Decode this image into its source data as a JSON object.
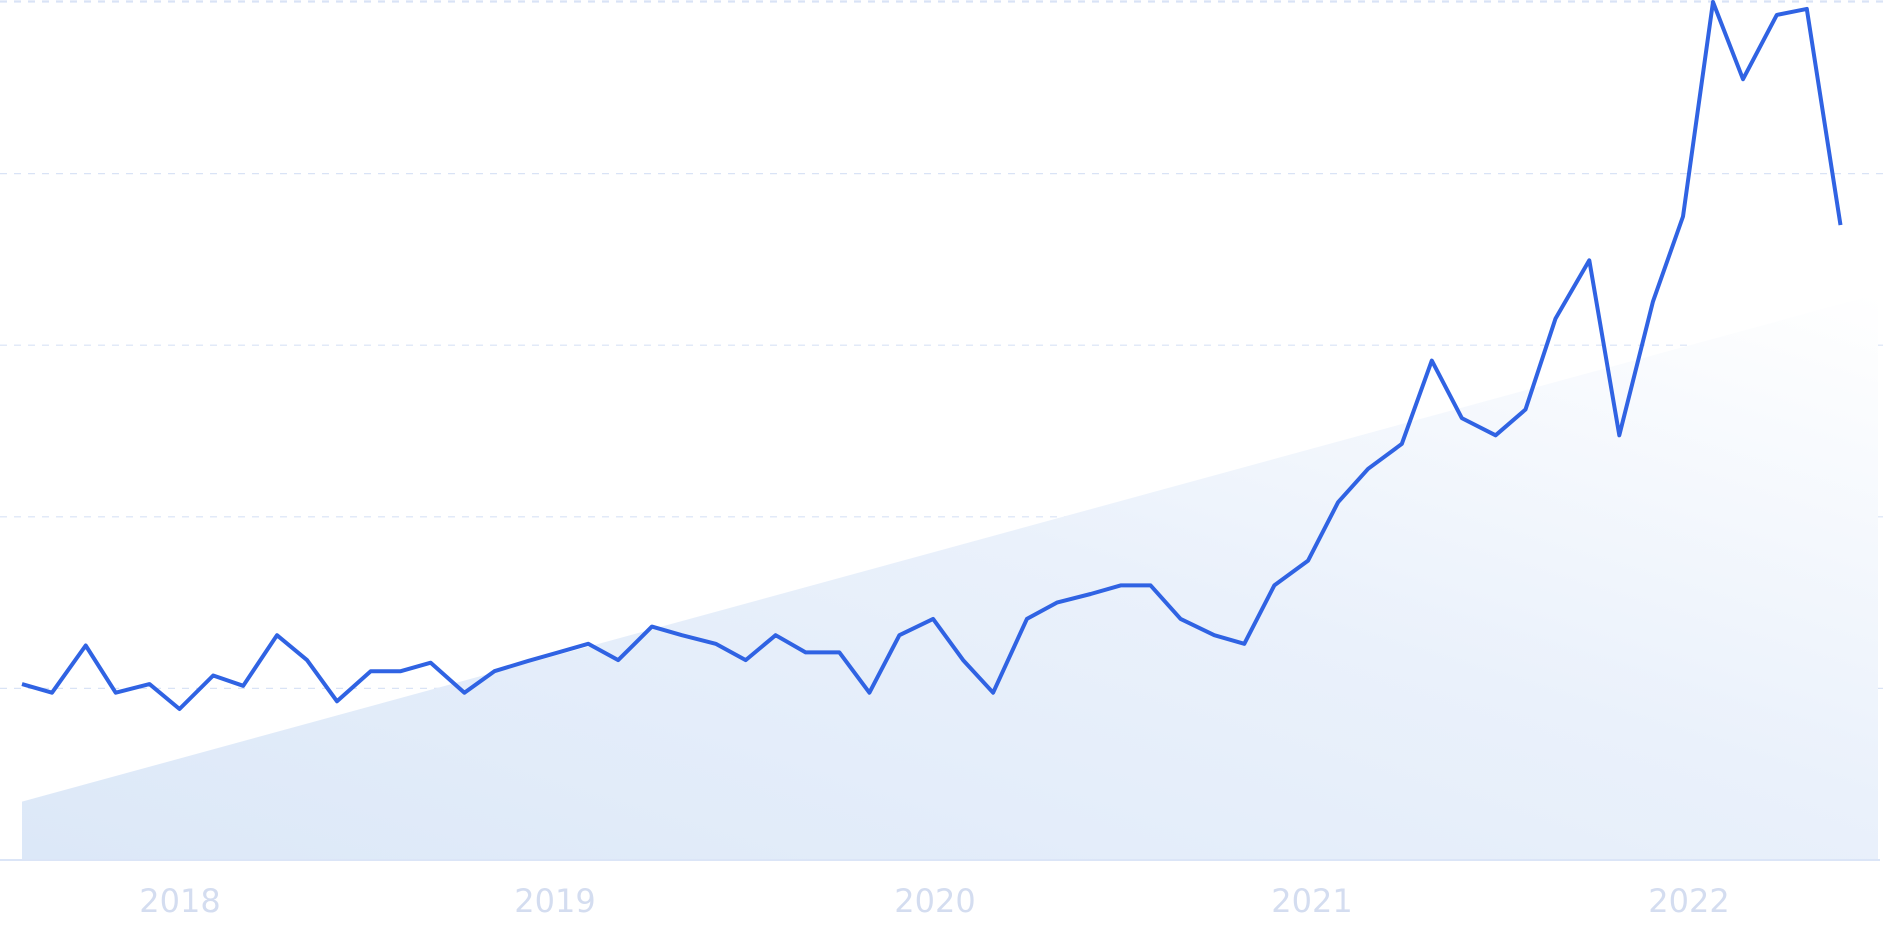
{
  "chart_data": {
    "type": "line",
    "title": "",
    "xlabel": "",
    "ylabel": "",
    "x_tick_labels": [
      "2018",
      "2019",
      "2020",
      "2021",
      "2022"
    ],
    "y_gridlines": 6,
    "grid": true,
    "ylim": [
      0,
      100
    ],
    "x_range": [
      2017.55,
      2022.5
    ],
    "series": [
      {
        "color": "#3063e3",
        "points": [
          [
            2017.55,
            20.5
          ],
          [
            2017.63,
            19.5
          ],
          [
            2017.72,
            25.0
          ],
          [
            2017.8,
            19.5
          ],
          [
            2017.89,
            20.5
          ],
          [
            2017.97,
            17.6
          ],
          [
            2018.06,
            21.5
          ],
          [
            2018.14,
            20.3
          ],
          [
            2018.23,
            26.2
          ],
          [
            2018.31,
            23.3
          ],
          [
            2018.39,
            18.5
          ],
          [
            2018.48,
            22.0
          ],
          [
            2018.56,
            22.0
          ],
          [
            2018.64,
            23.0
          ],
          [
            2018.73,
            19.5
          ],
          [
            2018.81,
            22.0
          ],
          [
            2018.9,
            23.2
          ],
          [
            2018.98,
            24.2
          ],
          [
            2019.06,
            25.2
          ],
          [
            2019.14,
            23.3
          ],
          [
            2019.23,
            27.2
          ],
          [
            2019.31,
            26.2
          ],
          [
            2019.4,
            25.2
          ],
          [
            2019.48,
            23.3
          ],
          [
            2019.56,
            26.2
          ],
          [
            2019.64,
            24.2
          ],
          [
            2019.73,
            24.2
          ],
          [
            2019.81,
            19.5
          ],
          [
            2019.89,
            26.2
          ],
          [
            2019.98,
            28.1
          ],
          [
            2020.06,
            23.3
          ],
          [
            2020.14,
            19.5
          ],
          [
            2020.23,
            28.1
          ],
          [
            2020.31,
            30.0
          ],
          [
            2020.4,
            31.0
          ],
          [
            2020.48,
            32.0
          ],
          [
            2020.56,
            32.0
          ],
          [
            2020.64,
            28.1
          ],
          [
            2020.73,
            26.2
          ],
          [
            2020.81,
            25.2
          ],
          [
            2020.89,
            32.0
          ],
          [
            2020.98,
            34.9
          ],
          [
            2021.06,
            41.7
          ],
          [
            2021.14,
            45.6
          ],
          [
            2021.23,
            48.5
          ],
          [
            2021.31,
            58.2
          ],
          [
            2021.39,
            51.5
          ],
          [
            2021.48,
            49.5
          ],
          [
            2021.56,
            52.5
          ],
          [
            2021.64,
            63.1
          ],
          [
            2021.73,
            69.9
          ],
          [
            2021.81,
            49.5
          ],
          [
            2021.9,
            65.1
          ],
          [
            2021.98,
            75.0
          ],
          [
            2022.06,
            100.0
          ],
          [
            2022.14,
            91.0
          ],
          [
            2022.23,
            98.5
          ],
          [
            2022.31,
            99.2
          ],
          [
            2022.4,
            74.0
          ]
        ]
      }
    ],
    "trend": {
      "color": "#dfeafa",
      "start": [
        2017.55,
        6.8
      ],
      "end": [
        2022.5,
        66.0
      ]
    }
  }
}
